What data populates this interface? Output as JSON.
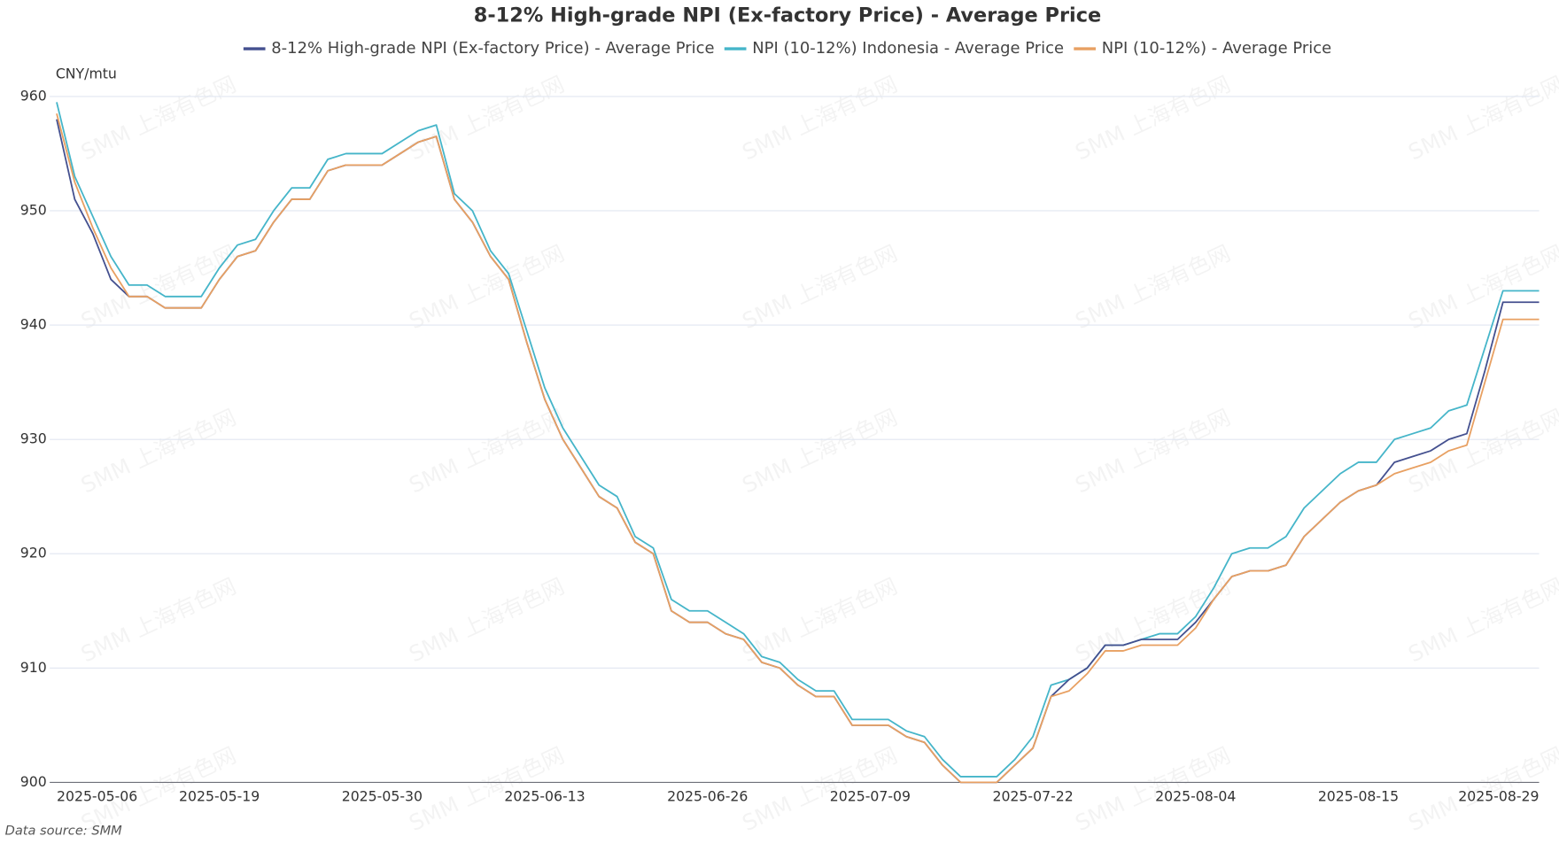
{
  "chart_data": {
    "type": "line",
    "title": "8-12% High-grade NPI (Ex-factory Price) - Average Price",
    "y_label": "CNY/mtu",
    "source": "Data source:  SMM",
    "watermark": "SMM 上海有色网",
    "categories": [
      "2025-05-06",
      null,
      null,
      null,
      null,
      null,
      null,
      null,
      null,
      "2025-05-19",
      null,
      null,
      null,
      null,
      null,
      null,
      null,
      null,
      "2025-05-30",
      null,
      null,
      null,
      null,
      null,
      null,
      null,
      null,
      "2025-06-13",
      null,
      null,
      null,
      null,
      null,
      null,
      null,
      null,
      "2025-06-26",
      null,
      null,
      null,
      null,
      null,
      null,
      null,
      null,
      "2025-07-09",
      null,
      null,
      null,
      null,
      null,
      null,
      null,
      null,
      "2025-07-22",
      null,
      null,
      null,
      null,
      null,
      null,
      null,
      null,
      "2025-08-04",
      null,
      null,
      null,
      null,
      null,
      null,
      null,
      null,
      "2025-08-15",
      null,
      null,
      null,
      null,
      null,
      null,
      null,
      null,
      null,
      "2025-08-29"
    ],
    "series": [
      {
        "name": "8-12% High-grade NPI (Ex-factory Price) - Average Price",
        "color": "#44508f",
        "values": [
          958,
          951,
          948,
          944,
          942.5,
          942.5,
          941.5,
          941.5,
          941.5,
          944,
          946,
          946.5,
          949,
          951,
          951,
          953.5,
          954,
          954,
          954,
          955,
          956,
          956.5,
          951,
          949,
          946,
          944,
          938.5,
          933.5,
          930,
          927.5,
          925,
          924,
          921,
          920,
          915,
          914,
          914,
          913,
          912.5,
          910.5,
          910,
          908.5,
          907.5,
          907.5,
          905,
          905,
          905,
          904,
          903.5,
          901.5,
          900,
          900,
          900,
          901.5,
          903,
          907.5,
          909,
          910,
          912,
          912,
          912.5,
          912.5,
          912.5,
          914,
          916,
          918,
          918.5,
          918.5,
          919,
          921.5,
          923,
          924.5,
          925.5,
          926,
          928,
          928.5,
          929,
          930,
          930.5,
          936,
          942,
          942,
          942
        ]
      },
      {
        "name": "NPI (10-12%) Indonesia - Average Price",
        "color": "#45b5c9",
        "values": [
          959.5,
          953,
          949.5,
          946,
          943.5,
          943.5,
          942.5,
          942.5,
          942.5,
          945,
          947,
          947.5,
          950,
          952,
          952,
          954.5,
          955,
          955,
          955,
          956,
          957,
          957.5,
          951.5,
          950,
          946.5,
          944.5,
          939.5,
          934.5,
          931,
          928.5,
          926,
          925,
          921.5,
          920.5,
          916,
          915,
          915,
          914,
          913,
          911,
          910.5,
          909,
          908,
          908,
          905.5,
          905.5,
          905.5,
          904.5,
          904,
          902,
          900.5,
          900.5,
          900.5,
          902,
          904,
          908.5,
          909,
          910,
          912,
          912,
          912.5,
          913,
          913,
          914.5,
          917,
          920,
          920.5,
          920.5,
          921.5,
          924,
          925.5,
          927,
          928,
          928,
          930,
          930.5,
          931,
          932.5,
          933,
          938,
          943,
          943,
          943
        ]
      },
      {
        "name": "NPI (10-12%) - Average Price",
        "color": "#e8a062",
        "values": [
          958.5,
          952.5,
          948.5,
          945,
          942.5,
          942.5,
          941.5,
          941.5,
          941.5,
          944,
          946,
          946.5,
          949,
          951,
          951,
          953.5,
          954,
          954,
          954,
          955,
          956,
          956.5,
          951,
          949,
          946,
          944,
          938.5,
          933.5,
          930,
          927.5,
          925,
          924,
          921,
          920,
          915,
          914,
          914,
          913,
          912.5,
          910.5,
          910,
          908.5,
          907.5,
          907.5,
          905,
          905,
          905,
          904,
          903.5,
          901.5,
          900,
          900,
          900,
          901.5,
          903,
          907.5,
          908,
          909.5,
          911.5,
          911.5,
          912,
          912,
          912,
          913.5,
          916,
          918,
          918.5,
          918.5,
          919,
          921.5,
          923,
          924.5,
          925.5,
          926,
          927,
          927.5,
          928,
          929,
          929.5,
          935,
          940.5,
          940.5,
          940.5
        ]
      }
    ],
    "ylim": [
      900,
      960
    ],
    "yticks": [
      900,
      910,
      920,
      930,
      940,
      950,
      960
    ],
    "grid": true
  }
}
